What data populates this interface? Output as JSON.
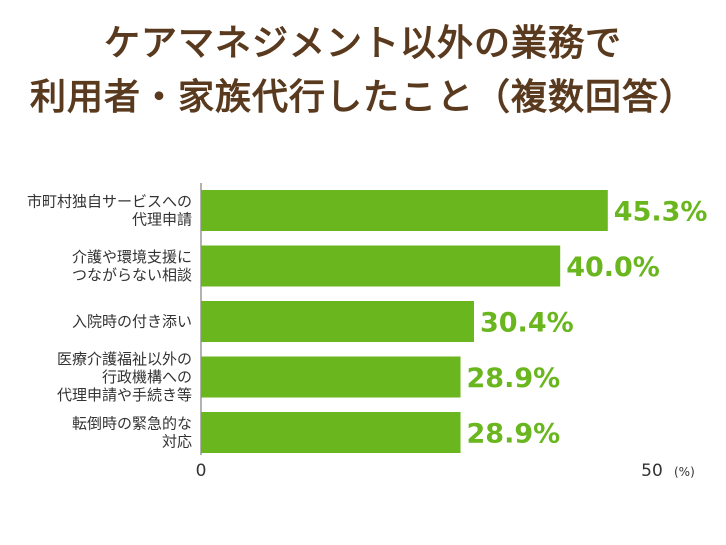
{
  "title": {
    "line1": "ケアマネジメント以外の業務で",
    "line2": "利用者・家族代行したこと（複数回答）"
  },
  "colors": {
    "bar": "#6ab61e",
    "value_text": "#6ab61e",
    "title_text": "#5a3a1e",
    "axis": "#666666"
  },
  "chart_data": {
    "type": "bar",
    "orientation": "horizontal",
    "categories": [
      [
        "市町村独自サービスへの",
        "代理申請"
      ],
      [
        "介護や環境支援に",
        "つながらない相談"
      ],
      [
        "入院時の付き添い"
      ],
      [
        "医療介護福祉以外の",
        "行政機構への",
        "代理申請や手続き等"
      ],
      [
        "転倒時の緊急的な",
        "対応"
      ]
    ],
    "values": [
      45.3,
      40.0,
      30.4,
      28.9,
      28.9
    ],
    "value_labels": [
      "45.3%",
      "40.0%",
      "30.4%",
      "28.9%",
      "28.9%"
    ],
    "xlim": [
      0,
      50
    ],
    "x_ticks": [
      "0",
      "50"
    ],
    "x_unit": "(%)",
    "grid": false
  }
}
